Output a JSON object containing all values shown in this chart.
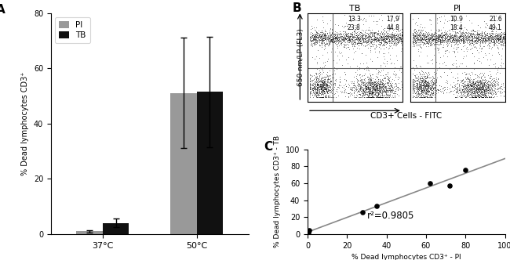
{
  "panel_A": {
    "label": "A",
    "groups": [
      "37°C",
      "50°C"
    ],
    "PI_values": [
      1.0,
      51.0
    ],
    "TB_values": [
      4.0,
      51.5
    ],
    "PI_errors": [
      0.5,
      20.0
    ],
    "TB_errors": [
      1.5,
      20.0
    ],
    "PI_color": "#999999",
    "TB_color": "#111111",
    "ylabel": "% Dead lymphocytes CD3⁺",
    "ylim": [
      0,
      80
    ],
    "yticks": [
      0,
      20,
      40,
      60,
      80
    ],
    "legend_labels": [
      "PI",
      "TB"
    ]
  },
  "panel_B": {
    "label": "B",
    "plots": [
      {
        "title": "TB",
        "quadrants": [
          [
            "13.3",
            "17.9"
          ],
          [
            "23.8",
            "44.8"
          ]
        ]
      },
      {
        "title": "PI",
        "quadrants": [
          [
            "10.9",
            "21.6"
          ],
          [
            "18.4",
            "49.1"
          ]
        ]
      }
    ],
    "xlabel": "CD3+ Cells - FITC",
    "ylabel": "650 nm/LP (FL3)"
  },
  "panel_C": {
    "label": "C",
    "x_data": [
      0.5,
      1.0,
      28.0,
      35.0,
      62.0,
      72.0,
      80.0
    ],
    "y_data": [
      2.0,
      4.0,
      26.0,
      33.0,
      60.0,
      57.0,
      76.0
    ],
    "r2_text": "r²=0.9805",
    "xlabel": "% Dead lymphocytes CD3⁺ - PI",
    "ylabel": "% Dead lymphocytes CD3⁺ - TB",
    "xlim": [
      0,
      100
    ],
    "ylim": [
      0,
      100
    ],
    "xticks": [
      0,
      20,
      40,
      60,
      80,
      100
    ],
    "yticks": [
      0,
      20,
      40,
      60,
      80,
      100
    ],
    "line_color": "#888888"
  }
}
